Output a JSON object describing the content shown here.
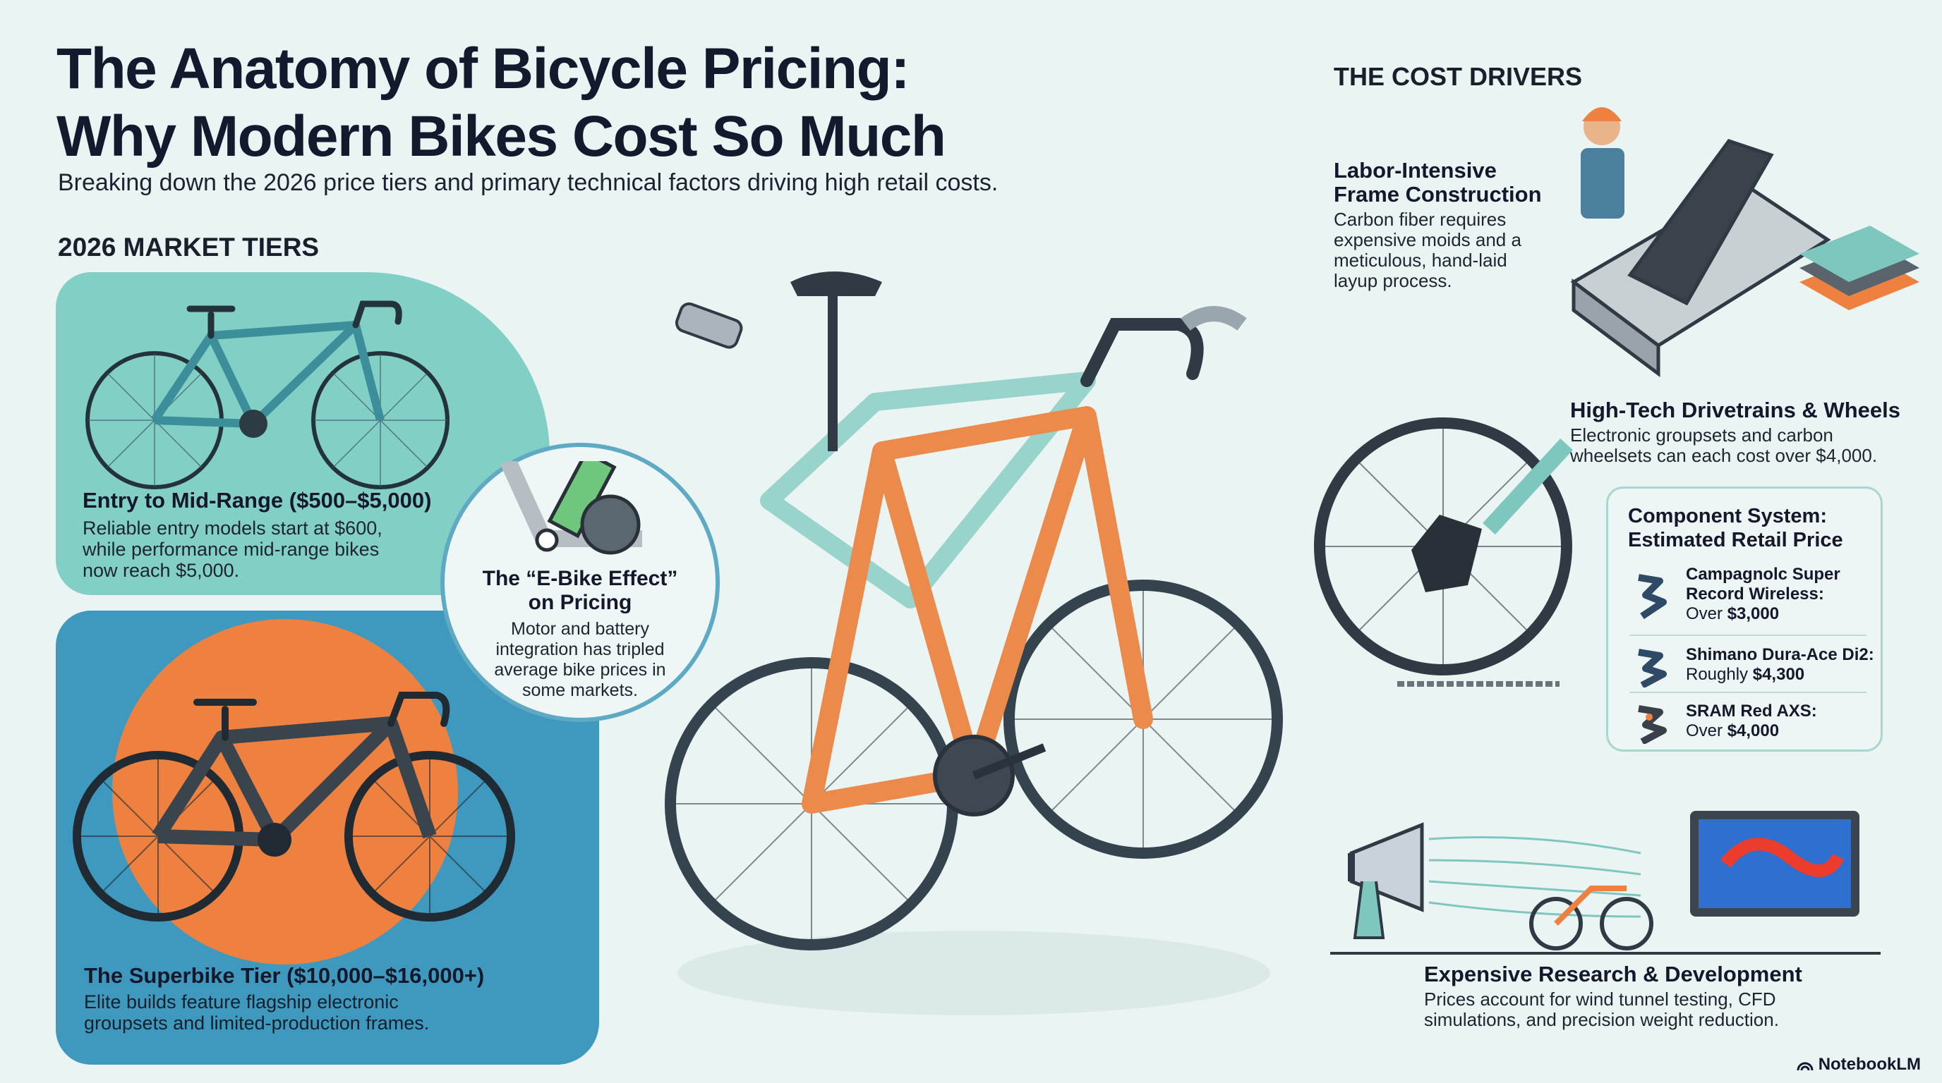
{
  "header": {
    "title_line1": "The Anatomy of Bicycle Pricing:",
    "title_line2": "Why Modern Bikes Cost So Much",
    "subtitle": "Breaking down the 2026 price tiers and primary technical factors driving high retail costs."
  },
  "tiers": {
    "heading": "2026 MARKET TIERS",
    "entry": {
      "title": "Entry to Mid-Range ($500–$5,000)",
      "lines": [
        "Reliable entry models start at $600,",
        "while performance mid-range bikes",
        "now reach $5,000."
      ]
    },
    "superbike": {
      "title": "The Superbike Tier ($10,000–$16,000+)",
      "lines": [
        "Elite builds feature flagship electronic",
        "groupsets and limited-production frames."
      ]
    }
  },
  "ebike": {
    "title_line1": "The “E-Bike Effect”",
    "title_line2": "on Pricing",
    "lines": [
      "Motor and battery",
      "integration has tripled",
      "average bike prices in",
      "some markets."
    ]
  },
  "drivers": {
    "heading": "THE COST DRIVERS",
    "labor": {
      "title_line1": "Labor-Intensive",
      "title_line2": "Frame Construction",
      "lines": [
        "Carbon fiber requires",
        "expensive moids and a",
        "meticulous, hand-laid",
        "layup process."
      ]
    },
    "drivetrain": {
      "title": "High-Tech Drivetrains & Wheels",
      "lines": [
        "Electronic groupsets and carbon",
        "wheelsets can each cost over $4,000."
      ]
    },
    "components": {
      "title_line1": "Component System:",
      "title_line2": "Estimated Retail Price",
      "items": [
        {
          "name_line1": "Campagnolc Super",
          "name_line2": "Record Wireless:",
          "qualifier": "Over",
          "price": "$3,000",
          "icon": "derailleur-icon"
        },
        {
          "name_line1": "Shimano Dura-Ace Di2:",
          "qualifier": "Roughly",
          "price": "$4,300",
          "icon": "derailleur-icon"
        },
        {
          "name_line1": "SRAM Red AXS:",
          "qualifier": "Over",
          "price": "$4,000",
          "icon": "derailleur-icon"
        }
      ]
    },
    "rnd": {
      "title": "Expensive Research & Development",
      "lines": [
        "Prices account for wind tunnel testing, CFD",
        "simulations, and precision weight reduction."
      ]
    }
  },
  "branding": {
    "logo": "NotebookLM"
  },
  "colors": {
    "entry_panel": "#82cfc6",
    "superbike_panel": "#3f99bf",
    "accent_orange": "#ee8140",
    "frame_teal": "#8fd0c8"
  }
}
